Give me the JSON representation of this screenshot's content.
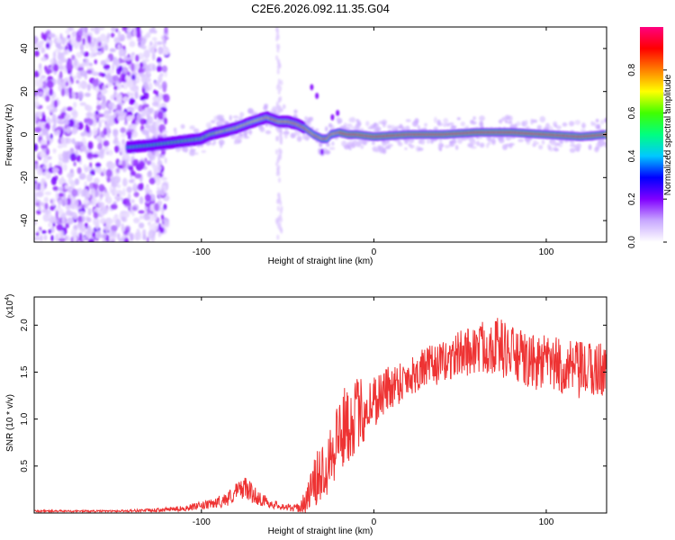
{
  "title": "C2E6.2026.092.11.35.G04",
  "chart_data": [
    {
      "type": "heatmap",
      "xlabel": "Height of straight line (km)",
      "ylabel": "Frequency (Hz)",
      "xlim": [
        -197,
        135
      ],
      "ylim": [
        -50,
        50
      ],
      "xticks": [
        -100,
        0,
        100
      ],
      "xtick_labels": [
        "-100",
        "0",
        "100"
      ],
      "yticks": [
        -40,
        -20,
        0,
        20,
        40
      ],
      "ytick_labels": [
        "-40",
        "-20",
        "0",
        "20",
        "40"
      ],
      "ridge": {
        "x": [
          -143,
          -130,
          -120,
          -110,
          -100,
          -95,
          -90,
          -80,
          -70,
          -62,
          -55,
          -50,
          -45,
          -40,
          -35,
          -30,
          -27,
          -25,
          -20,
          -15,
          -10,
          0,
          20,
          40,
          60,
          80,
          100,
          120,
          135
        ],
        "y": [
          -6,
          -5,
          -4,
          -3,
          -2,
          0,
          1,
          3,
          6,
          8,
          6,
          6,
          5,
          3,
          0,
          -2,
          -2,
          0,
          1,
          0,
          0,
          -1,
          0,
          0,
          1,
          1,
          0,
          -1,
          0
        ]
      },
      "colorbar": {
        "label": "Normalized spectral amplitude",
        "range": [
          0,
          1
        ],
        "ticks": [
          0.0,
          0.2,
          0.4,
          0.6,
          0.8
        ],
        "tick_labels": [
          "0.0",
          "0.2",
          "0.4",
          "0.6",
          "0.8"
        ],
        "colors": [
          "#ffffff",
          "#c8a8ff",
          "#8000ff",
          "#0000ff",
          "#00c8ff",
          "#00ff80",
          "#40ff00",
          "#ffff00",
          "#ff8000",
          "#ff0000",
          "#ff0080"
        ]
      }
    },
    {
      "type": "line",
      "xlabel": "Height of straight line (km)",
      "ylabel": "SNR (10 * v/v)",
      "y_multiplier": "(x10",
      "y_multiplier_exp": "4",
      "y_multiplier_close": ")",
      "xlim": [
        -197,
        135
      ],
      "ylim": [
        0,
        2.3
      ],
      "xticks": [
        -100,
        0,
        100
      ],
      "xtick_labels": [
        "-100",
        "0",
        "100"
      ],
      "yticks": [
        0.5,
        1.0,
        1.5,
        2.0
      ],
      "ytick_labels": [
        "0.5",
        "1.0",
        "1.5",
        "2.0"
      ],
      "series": [
        {
          "color": "#ee3333",
          "x": [
            -197,
            -150,
            -125,
            -110,
            -95,
            -85,
            -80,
            -75,
            -70,
            -65,
            -60,
            -55,
            -50,
            -45,
            -40,
            -35,
            -30,
            -25,
            -20,
            -15,
            -10,
            -5,
            0,
            10,
            20,
            30,
            40,
            50,
            60,
            70,
            80,
            90,
            100,
            110,
            120,
            135
          ],
          "y": [
            0.02,
            0.02,
            0.03,
            0.05,
            0.09,
            0.15,
            0.22,
            0.28,
            0.2,
            0.14,
            0.1,
            0.08,
            0.06,
            0.05,
            0.1,
            0.3,
            0.45,
            0.65,
            0.85,
            0.95,
            1.05,
            1.1,
            1.2,
            1.35,
            1.45,
            1.55,
            1.6,
            1.7,
            1.75,
            1.8,
            1.7,
            1.6,
            1.6,
            1.55,
            1.5,
            1.55
          ],
          "noise": [
            0.01,
            0.01,
            0.02,
            0.03,
            0.05,
            0.08,
            0.1,
            0.12,
            0.1,
            0.07,
            0.05,
            0.04,
            0.04,
            0.04,
            0.12,
            0.25,
            0.35,
            0.4,
            0.45,
            0.42,
            0.4,
            0.35,
            0.3,
            0.25,
            0.22,
            0.22,
            0.22,
            0.25,
            0.28,
            0.32,
            0.3,
            0.3,
            0.3,
            0.3,
            0.32,
            0.3
          ]
        }
      ]
    }
  ]
}
